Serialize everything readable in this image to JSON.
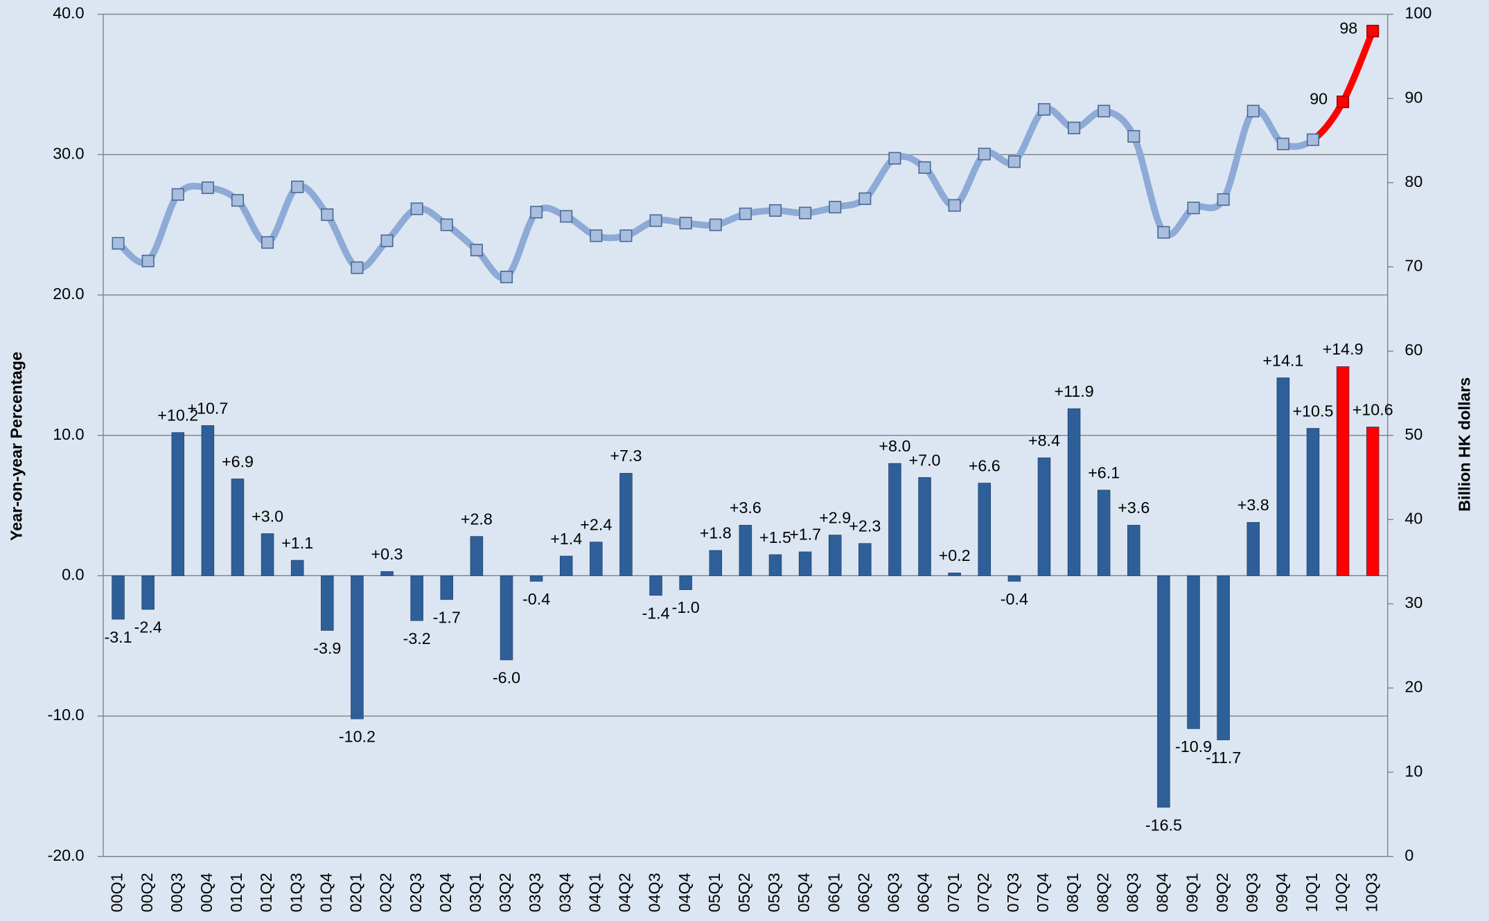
{
  "chart_data": {
    "type": "combo",
    "y_label": "Year-on-year Percentage",
    "y2_label": "Billion HK dollars",
    "categories": [
      "00Q1",
      "00Q2",
      "00Q3",
      "00Q4",
      "01Q1",
      "01Q2",
      "01Q3",
      "01Q4",
      "02Q1",
      "02Q2",
      "02Q3",
      "02Q4",
      "03Q1",
      "03Q2",
      "03Q3",
      "03Q4",
      "04Q1",
      "04Q2",
      "04Q3",
      "04Q4",
      "05Q1",
      "05Q2",
      "05Q3",
      "05Q4",
      "06Q1",
      "06Q2",
      "06Q3",
      "06Q4",
      "07Q1",
      "07Q2",
      "07Q3",
      "07Q4",
      "08Q1",
      "08Q2",
      "08Q3",
      "08Q4",
      "09Q1",
      "09Q2",
      "09Q3",
      "09Q4",
      "10Q1",
      "10Q2",
      "10Q3"
    ],
    "ylim": [
      -20,
      40
    ],
    "yticks": [
      {
        "value": -20,
        "label": "-20.0"
      },
      {
        "value": -10,
        "label": "-10.0"
      },
      {
        "value": 0,
        "label": "0.0"
      },
      {
        "value": 10,
        "label": "10.0"
      },
      {
        "value": 20,
        "label": "20.0"
      },
      {
        "value": 30,
        "label": "30.0"
      },
      {
        "value": 40,
        "label": "40.0"
      }
    ],
    "y2lim": [
      0,
      100
    ],
    "y2ticks": [
      0,
      10,
      20,
      30,
      40,
      50,
      60,
      70,
      80,
      90,
      100
    ],
    "grid": true,
    "series": [
      {
        "type": "bar",
        "values": [
          -3.1,
          -2.4,
          10.2,
          10.7,
          6.9,
          3.0,
          1.1,
          -3.9,
          -10.2,
          0.3,
          -3.2,
          -1.7,
          2.8,
          -6.0,
          -0.4,
          1.4,
          2.4,
          7.3,
          -1.4,
          -1.0,
          1.8,
          3.6,
          1.5,
          1.7,
          2.9,
          2.3,
          8.0,
          7.0,
          0.2,
          6.6,
          -0.4,
          8.4,
          11.9,
          6.1,
          3.6,
          -16.5,
          -10.9,
          -11.7,
          3.8,
          14.1,
          10.5,
          14.9,
          10.6
        ],
        "value_labels": [
          "-3.1",
          "-2.4",
          "+10.2",
          "+10.7",
          "+6.9",
          "+3.0",
          "+1.1",
          "-3.9",
          "-10.2",
          "+0.3",
          "-3.2",
          "-1.7",
          "+2.8",
          "-6.0",
          "-0.4",
          "+1.4",
          "+2.4",
          "+7.3",
          "-1.4",
          "-1.0",
          "+1.8",
          "+3.6",
          "+1.5",
          "+1.7",
          "+2.9",
          "+2.3",
          "+8.0",
          "+7.0",
          "+0.2",
          "+6.6",
          "-0.4",
          "+8.4",
          "+11.9",
          "+6.1",
          "+3.6",
          "-16.5",
          "-10.9",
          "-11.7",
          "+3.8",
          "+14.1",
          "+10.5",
          "+14.9",
          "+10.6"
        ],
        "colors": [
          "#2e5f98",
          "#2e5f98",
          "#2e5f98",
          "#2e5f98",
          "#2e5f98",
          "#2e5f98",
          "#2e5f98",
          "#2e5f98",
          "#2e5f98",
          "#2e5f98",
          "#2e5f98",
          "#2e5f98",
          "#2e5f98",
          "#2e5f98",
          "#2e5f98",
          "#2e5f98",
          "#2e5f98",
          "#2e5f98",
          "#2e5f98",
          "#2e5f98",
          "#2e5f98",
          "#2e5f98",
          "#2e5f98",
          "#2e5f98",
          "#2e5f98",
          "#2e5f98",
          "#2e5f98",
          "#2e5f98",
          "#2e5f98",
          "#2e5f98",
          "#2e5f98",
          "#2e5f98",
          "#2e5f98",
          "#2e5f98",
          "#2e5f98",
          "#2e5f98",
          "#2e5f98",
          "#2e5f98",
          "#2e5f98",
          "#2e5f98",
          "#2e5f98",
          "#ff0000",
          "#ff0000"
        ]
      },
      {
        "type": "line",
        "axis": "y2",
        "values": [
          72.8,
          70.7,
          78.6,
          79.4,
          77.9,
          72.9,
          79.5,
          76.2,
          69.9,
          73.1,
          76.9,
          75.0,
          72.0,
          68.8,
          76.5,
          76.0,
          73.7,
          73.7,
          75.5,
          75.2,
          75.0,
          76.3,
          76.7,
          76.4,
          77.1,
          78.1,
          82.9,
          81.8,
          77.3,
          83.4,
          82.5,
          88.7,
          86.5,
          88.5,
          85.5,
          74.1,
          77.0,
          78.0,
          88.5,
          84.6,
          85.1,
          89.6,
          98.0
        ],
        "value_labels": [
          null,
          null,
          null,
          null,
          null,
          null,
          null,
          null,
          null,
          null,
          null,
          null,
          null,
          null,
          null,
          null,
          null,
          null,
          null,
          null,
          null,
          null,
          null,
          null,
          null,
          null,
          null,
          null,
          null,
          null,
          null,
          null,
          null,
          null,
          null,
          null,
          null,
          null,
          null,
          null,
          null,
          "90",
          "98"
        ],
        "colors": [
          "#8eaad6",
          "#8eaad6",
          "#8eaad6",
          "#8eaad6",
          "#8eaad6",
          "#8eaad6",
          "#8eaad6",
          "#8eaad6",
          "#8eaad6",
          "#8eaad6",
          "#8eaad6",
          "#8eaad6",
          "#8eaad6",
          "#8eaad6",
          "#8eaad6",
          "#8eaad6",
          "#8eaad6",
          "#8eaad6",
          "#8eaad6",
          "#8eaad6",
          "#8eaad6",
          "#8eaad6",
          "#8eaad6",
          "#8eaad6",
          "#8eaad6",
          "#8eaad6",
          "#8eaad6",
          "#8eaad6",
          "#8eaad6",
          "#8eaad6",
          "#8eaad6",
          "#8eaad6",
          "#8eaad6",
          "#8eaad6",
          "#8eaad6",
          "#8eaad6",
          "#8eaad6",
          "#8eaad6",
          "#8eaad6",
          "#8eaad6",
          "#8eaad6",
          "#ff0000",
          "#ff0000"
        ]
      }
    ]
  }
}
